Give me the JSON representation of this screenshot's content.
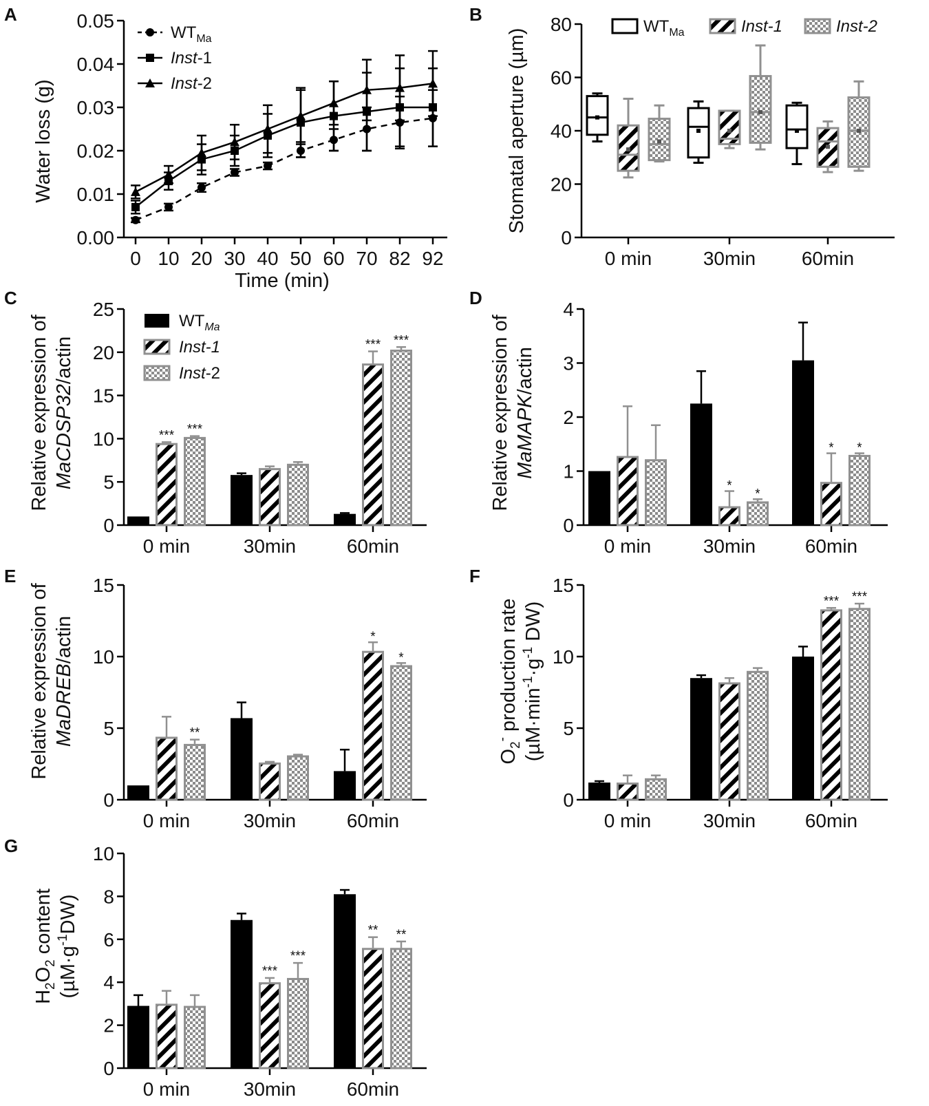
{
  "legend_labels": {
    "wt": "WT",
    "wt_sub": "Ma",
    "inst1_ital": "Inst",
    "inst1_rest": "-1",
    "inst2_ital": "Inst",
    "inst2_rest": "-2",
    "inst1_b": "Inst-1",
    "inst2_b": "Inst-2"
  },
  "colors": {
    "wt": "#000000",
    "inst": "#909090",
    "axis": "#000000"
  },
  "chart_data": [
    {
      "id": "A",
      "panel_label": "A",
      "type": "line",
      "xlabel": "Time (min)",
      "ylabel": "Water loss (g)",
      "x": [
        0,
        10,
        20,
        30,
        40,
        50,
        60,
        70,
        82,
        92
      ],
      "x_tick_labels": [
        "0",
        "10",
        "20",
        "30",
        "40",
        "50",
        "60",
        "70",
        "82",
        "92"
      ],
      "ylim": [
        0,
        0.05
      ],
      "y_ticks": [
        0,
        0.01,
        0.02,
        0.03,
        0.04,
        0.05
      ],
      "y_tick_labels": [
        "0.00",
        "0.01",
        "0.02",
        "0.03",
        "0.04",
        "0.05"
      ],
      "series": [
        {
          "name": "WT_Ma",
          "style": "dashed",
          "marker": "circle",
          "values": [
            0.004,
            0.007,
            0.0115,
            0.015,
            0.0165,
            0.02,
            0.0225,
            0.025,
            0.0265,
            0.0275
          ],
          "errors": [
            0.0005,
            0.0008,
            0.001,
            0.0008,
            0.0008,
            0.0015,
            0.0025,
            0.005,
            0.006,
            0.0065
          ]
        },
        {
          "name": "Inst-1",
          "style": "solid",
          "marker": "square",
          "values": [
            0.007,
            0.013,
            0.018,
            0.02,
            0.0235,
            0.0265,
            0.028,
            0.029,
            0.03,
            0.03
          ],
          "errors": [
            0.0015,
            0.002,
            0.0035,
            0.0035,
            0.005,
            0.008,
            0.008,
            0.009,
            0.009,
            0.009
          ]
        },
        {
          "name": "Inst-2",
          "style": "solid",
          "marker": "triangle",
          "values": [
            0.0105,
            0.0145,
            0.0195,
            0.022,
            0.025,
            0.028,
            0.031,
            0.034,
            0.0345,
            0.0355
          ],
          "errors": [
            0.0015,
            0.002,
            0.004,
            0.004,
            0.0055,
            0.006,
            0.005,
            0.007,
            0.0075,
            0.0075
          ]
        }
      ]
    },
    {
      "id": "B",
      "panel_label": "B",
      "type": "box",
      "xlabel": "",
      "ylabel": "Stomatal aperture (µm)",
      "categories": [
        "0 min",
        "30min",
        "60min"
      ],
      "ylim": [
        0,
        80
      ],
      "y_ticks": [
        0,
        20,
        40,
        60,
        80
      ],
      "y_tick_labels": [
        "0",
        "20",
        "40",
        "60",
        "80"
      ],
      "series": [
        {
          "name": "WT_Ma",
          "boxes": [
            {
              "min": 36,
              "q1": 38.5,
              "median": 45,
              "q3": 53,
              "max": 54,
              "mean": 45
            },
            {
              "min": 28,
              "q1": 30,
              "median": 41.5,
              "q3": 48.5,
              "max": 51,
              "mean": 40
            },
            {
              "min": 27.5,
              "q1": 33.5,
              "median": 40.5,
              "q3": 49.5,
              "max": 50.5,
              "mean": 40
            }
          ]
        },
        {
          "name": "Inst-1",
          "boxes": [
            {
              "min": 22.5,
              "q1": 25,
              "median": 31,
              "q3": 42,
              "max": 52,
              "mean": 33
            },
            {
              "min": 33.5,
              "q1": 35,
              "median": 37,
              "q3": 47.5,
              "max": 47.5,
              "mean": 40
            },
            {
              "min": 24.5,
              "q1": 26.5,
              "median": 36,
              "q3": 41,
              "max": 43.5,
              "mean": 34
            }
          ]
        },
        {
          "name": "Inst-2",
          "boxes": [
            {
              "min": 28.5,
              "q1": 29,
              "median": 35,
              "q3": 44.5,
              "max": 49.5,
              "mean": 36
            },
            {
              "min": 33,
              "q1": 35.5,
              "median": 47,
              "q3": 60.5,
              "max": 72,
              "mean": 47
            },
            {
              "min": 25,
              "q1": 26.5,
              "median": 40,
              "q3": 52.5,
              "max": 58.5,
              "mean": 40
            }
          ]
        }
      ]
    },
    {
      "id": "C",
      "panel_label": "C",
      "type": "bar",
      "ylabel": "Relative expression of",
      "ylabel_gene": "MaCDSP32",
      "ylabel_suffix": "/actin",
      "categories": [
        "0 min",
        "30min",
        "60min"
      ],
      "ylim": [
        0,
        25
      ],
      "y_ticks": [
        0,
        5,
        10,
        15,
        20,
        25
      ],
      "y_tick_labels": [
        "0",
        "5",
        "10",
        "15",
        "20",
        "25"
      ],
      "series": [
        {
          "name": "WT_Ma",
          "values": [
            1.0,
            5.8,
            1.3
          ],
          "errors": [
            0,
            0.2,
            0.1
          ],
          "sig": [
            "",
            "",
            ""
          ]
        },
        {
          "name": "Inst-1",
          "values": [
            9.5,
            6.6,
            18.7
          ],
          "errors": [
            0.1,
            0.2,
            1.4
          ],
          "sig": [
            "***",
            "",
            "***"
          ]
        },
        {
          "name": "Inst-2",
          "values": [
            10.2,
            7.1,
            20.3
          ],
          "errors": [
            0.1,
            0.2,
            0.3
          ],
          "sig": [
            "***",
            "",
            "***"
          ]
        }
      ]
    },
    {
      "id": "D",
      "panel_label": "D",
      "type": "bar",
      "ylabel": "Relative expression of",
      "ylabel_gene": "MaMAPK",
      "ylabel_suffix": "/actin",
      "categories": [
        "0 min",
        "30min",
        "60min"
      ],
      "ylim": [
        0,
        4
      ],
      "y_ticks": [
        0,
        1,
        2,
        3,
        4
      ],
      "y_tick_labels": [
        "0",
        "1",
        "2",
        "3",
        "4"
      ],
      "series": [
        {
          "name": "WT_Ma",
          "values": [
            1.0,
            2.25,
            3.05
          ],
          "errors": [
            0,
            0.6,
            0.7
          ],
          "sig": [
            "",
            "",
            ""
          ]
        },
        {
          "name": "Inst-1",
          "values": [
            1.28,
            0.35,
            0.8
          ],
          "errors": [
            0.92,
            0.28,
            0.53
          ],
          "sig": [
            "",
            "*",
            "*"
          ]
        },
        {
          "name": "Inst-2",
          "values": [
            1.22,
            0.44,
            1.3
          ],
          "errors": [
            0.63,
            0.04,
            0.03
          ],
          "sig": [
            "",
            "*",
            "*"
          ]
        }
      ]
    },
    {
      "id": "E",
      "panel_label": "E",
      "type": "bar",
      "ylabel": "Relative expression of",
      "ylabel_gene": "MaDREB",
      "ylabel_suffix": "/actin",
      "categories": [
        "0 min",
        "30min",
        "60min"
      ],
      "ylim": [
        0,
        15
      ],
      "y_ticks": [
        0,
        5,
        10,
        15
      ],
      "y_tick_labels": [
        "0",
        "5",
        "10",
        "15"
      ],
      "series": [
        {
          "name": "WT_Ma",
          "values": [
            1.0,
            5.7,
            2.0
          ],
          "errors": [
            0,
            1.1,
            1.5
          ],
          "sig": [
            "",
            "",
            ""
          ]
        },
        {
          "name": "Inst-1",
          "values": [
            4.4,
            2.6,
            10.4
          ],
          "errors": [
            1.4,
            0.05,
            0.6
          ],
          "sig": [
            "",
            "",
            "*"
          ]
        },
        {
          "name": "Inst-2",
          "values": [
            3.9,
            3.1,
            9.4
          ],
          "errors": [
            0.3,
            0.05,
            0.15
          ],
          "sig": [
            "**",
            "",
            "*"
          ]
        }
      ]
    },
    {
      "id": "F",
      "panel_label": "F",
      "type": "bar",
      "ylabel_main": "O",
      "ylabel_sub": "2",
      "ylabel_sup": "-",
      "ylabel_rest": " production rate",
      "ylabel2_a": "(µM·min",
      "ylabel2_sup1": "-1",
      "ylabel2_b": "·g",
      "ylabel2_sup2": "-1",
      "ylabel2_c": " DW)",
      "categories": [
        "0 min",
        "30min",
        "60min"
      ],
      "ylim": [
        0,
        15
      ],
      "y_ticks": [
        0,
        5,
        10,
        15
      ],
      "y_tick_labels": [
        "0",
        "5",
        "10",
        "15"
      ],
      "series": [
        {
          "name": "WT_Ma",
          "values": [
            1.2,
            8.5,
            10.0
          ],
          "errors": [
            0.1,
            0.2,
            0.7
          ],
          "sig": [
            "",
            "",
            ""
          ]
        },
        {
          "name": "Inst-1",
          "values": [
            1.2,
            8.2,
            13.3
          ],
          "errors": [
            0.5,
            0.3,
            0.1
          ],
          "sig": [
            "",
            "",
            "***"
          ]
        },
        {
          "name": "Inst-2",
          "values": [
            1.5,
            9.0,
            13.4
          ],
          "errors": [
            0.2,
            0.2,
            0.3
          ],
          "sig": [
            "",
            "",
            "***"
          ]
        }
      ]
    },
    {
      "id": "G",
      "panel_label": "G",
      "type": "bar",
      "ylabel_h": "H",
      "ylabel_sub1": "2",
      "ylabel_o": "O",
      "ylabel_sub2": "2",
      "ylabel_rest": " content",
      "ylabel2_a": "(µM·g",
      "ylabel2_sup": "-1",
      "ylabel2_b": "DW)",
      "categories": [
        "0 min",
        "30min",
        "60min"
      ],
      "ylim": [
        0,
        10
      ],
      "y_ticks": [
        0,
        2,
        4,
        6,
        8,
        10
      ],
      "y_tick_labels": [
        "0",
        "2",
        "4",
        "6",
        "8",
        "10"
      ],
      "series": [
        {
          "name": "WT_Ma",
          "values": [
            2.9,
            6.9,
            8.1
          ],
          "errors": [
            0.5,
            0.3,
            0.2
          ],
          "sig": [
            "",
            "",
            ""
          ]
        },
        {
          "name": "Inst-1",
          "values": [
            3.0,
            4.0,
            5.6
          ],
          "errors": [
            0.6,
            0.2,
            0.5
          ],
          "sig": [
            "",
            "***",
            "**"
          ]
        },
        {
          "name": "Inst-2",
          "values": [
            2.9,
            4.2,
            5.6
          ],
          "errors": [
            0.5,
            0.7,
            0.3
          ],
          "sig": [
            "",
            "***",
            "**"
          ]
        }
      ]
    }
  ]
}
